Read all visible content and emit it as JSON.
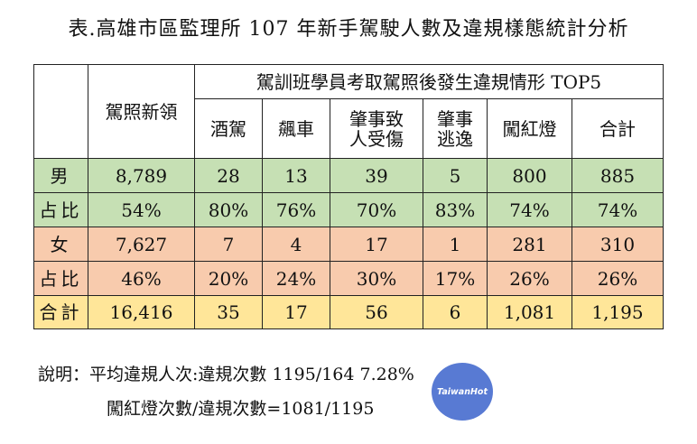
{
  "title": "表.高雄市區監理所 107 年新手駕駛人數及違規樣態統計分析",
  "table": {
    "col_new_license": "駕照新領",
    "group_header": "駕訓班學員考取駕照後發生違規情形 TOP5",
    "violation_headers": {
      "dui": "酒駕",
      "racing": "飆車",
      "injury_line1": "肇事致",
      "injury_line2": "人受傷",
      "hitrun_line1": "肇事",
      "hitrun_line2": "逃逸",
      "redlight": "闖紅燈",
      "total": "合計"
    },
    "rows": [
      {
        "label": "男",
        "values": [
          "8,789",
          "28",
          "13",
          "39",
          "5",
          "800",
          "885"
        ]
      },
      {
        "label": "占比",
        "values": [
          "54%",
          "80%",
          "76%",
          "70%",
          "83%",
          "74%",
          "74%"
        ]
      },
      {
        "label": "女",
        "values": [
          "7,627",
          "7",
          "4",
          "17",
          "1",
          "281",
          "310"
        ]
      },
      {
        "label": "占比",
        "values": [
          "46%",
          "20%",
          "24%",
          "30%",
          "17%",
          "26%",
          "26%"
        ]
      },
      {
        "label": "合計",
        "values": [
          "16,416",
          "35",
          "17",
          "56",
          "6",
          "1,081",
          "1,195"
        ]
      }
    ]
  },
  "notes": {
    "line1": "說明：平均違規人次:違規次數 1195/164    7.28%",
    "line2": "闖紅燈次數/違規次數=1081/1195"
  },
  "watermark": {
    "text": "TaiwanHot",
    "color": "#4a6fd0"
  },
  "colors": {
    "green": "#c6e0b4",
    "orange": "#f8cbad",
    "yellow": "#ffe699"
  }
}
